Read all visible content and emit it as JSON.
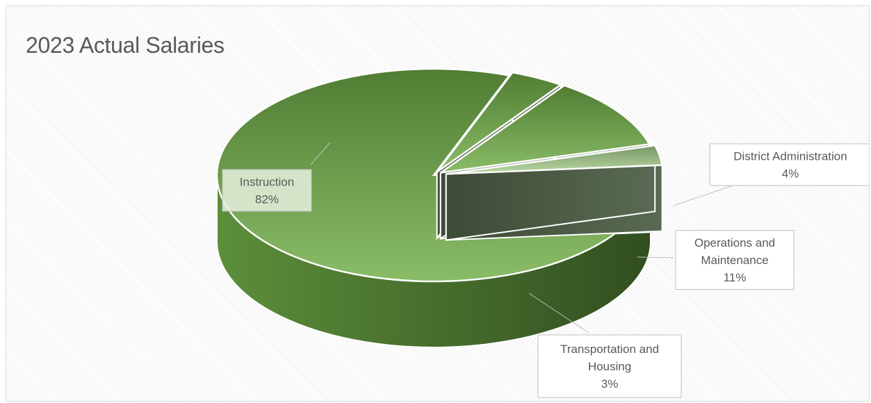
{
  "chart_data": {
    "type": "pie",
    "title": "2023 Actual Salaries",
    "style": "3d-exploded",
    "slices": [
      {
        "label": "Instruction",
        "value": 82,
        "percent_label": "82%",
        "color": "#70ad47"
      },
      {
        "label": "District Administration",
        "value": 4,
        "percent_label": "4%",
        "color": "#70ad47"
      },
      {
        "label": "Operations and Maintenance",
        "value": 11,
        "percent_label": "11%",
        "color": "#70ad47"
      },
      {
        "label": "Transportation and Housing",
        "value": 3,
        "percent_label": "3%",
        "color": "#a9d18e"
      }
    ]
  }
}
